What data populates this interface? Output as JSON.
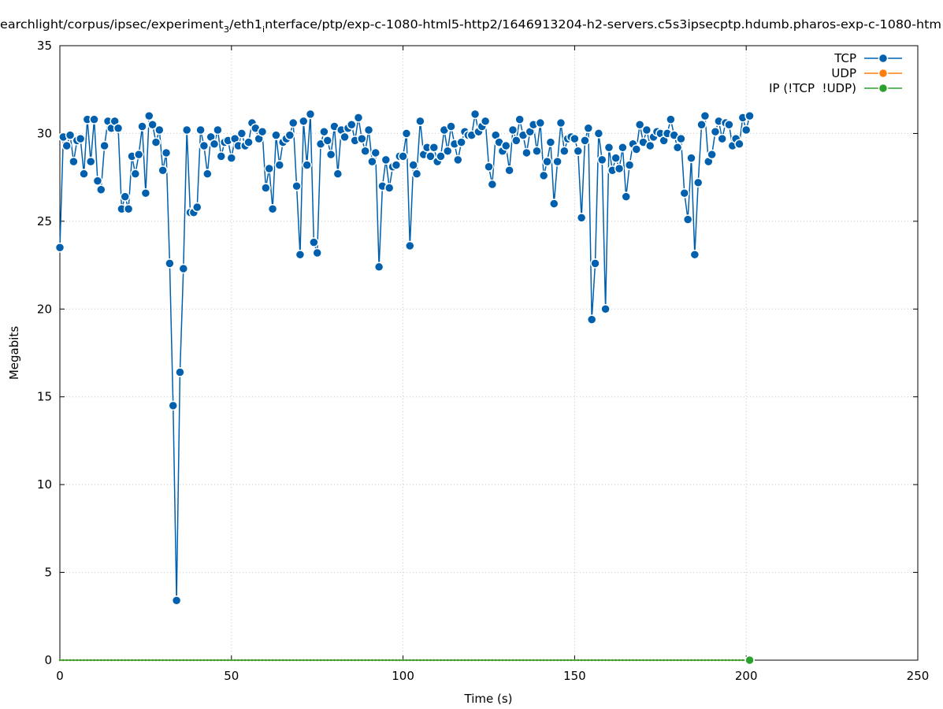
{
  "chart_data": {
    "type": "line",
    "title": [
      "earchlight/corpus/ipsec/experiment",
      "3",
      "/eth1",
      "i",
      "nterface/ptp/exp-c-1080-html5-http2/1646913204-h2-servers.c5s3ipsecptp.hdumb.pharos-exp-c-1080-htm"
    ],
    "x_label": "Time (s)",
    "y_label": "Megabits",
    "xlim": [
      0,
      250
    ],
    "xticks": [
      0,
      50,
      100,
      150,
      200,
      250
    ],
    "ylim": [
      0,
      35
    ],
    "yticks": [
      0,
      5,
      10,
      15,
      20,
      25,
      30,
      35
    ],
    "grid": true,
    "legend": "top-right",
    "x": [
      0,
      1,
      2,
      3,
      4,
      5,
      6,
      7,
      8,
      9,
      10,
      11,
      12,
      13,
      14,
      15,
      16,
      17,
      18,
      19,
      20,
      21,
      22,
      23,
      24,
      25,
      26,
      27,
      28,
      29,
      30,
      31,
      32,
      33,
      34,
      35,
      36,
      37,
      38,
      39,
      40,
      41,
      42,
      43,
      44,
      45,
      46,
      47,
      48,
      49,
      50,
      51,
      52,
      53,
      54,
      55,
      56,
      57,
      58,
      59,
      60,
      61,
      62,
      63,
      64,
      65,
      66,
      67,
      68,
      69,
      70,
      71,
      72,
      73,
      74,
      75,
      76,
      77,
      78,
      79,
      80,
      81,
      82,
      83,
      84,
      85,
      86,
      87,
      88,
      89,
      90,
      91,
      92,
      93,
      94,
      95,
      96,
      97,
      98,
      99,
      100,
      101,
      102,
      103,
      104,
      105,
      106,
      107,
      108,
      109,
      110,
      111,
      112,
      113,
      114,
      115,
      116,
      117,
      118,
      119,
      120,
      121,
      122,
      123,
      124,
      125,
      126,
      127,
      128,
      129,
      130,
      131,
      132,
      133,
      134,
      135,
      136,
      137,
      138,
      139,
      140,
      141,
      142,
      143,
      144,
      145,
      146,
      147,
      148,
      149,
      150,
      151,
      152,
      153,
      154,
      155,
      156,
      157,
      158,
      159,
      160,
      161,
      162,
      163,
      164,
      165,
      166,
      167,
      168,
      169,
      170,
      171,
      172,
      173,
      174,
      175,
      176,
      177,
      178,
      179,
      180,
      181,
      182,
      183,
      184,
      185,
      186,
      187,
      188,
      189,
      190,
      191,
      192,
      193,
      194,
      195,
      196,
      197,
      198,
      199,
      200,
      201
    ],
    "series": [
      {
        "name": "TCP",
        "color": "#0060ad",
        "values": [
          23.5,
          29.8,
          29.3,
          29.9,
          28.4,
          29.6,
          29.7,
          27.7,
          30.8,
          28.4,
          30.8,
          27.3,
          26.8,
          29.3,
          30.7,
          30.3,
          30.7,
          30.3,
          25.7,
          26.4,
          25.7,
          28.7,
          27.7,
          28.8,
          30.4,
          26.6,
          31.0,
          30.5,
          29.5,
          30.2,
          27.9,
          28.9,
          22.6,
          14.5,
          3.4,
          16.4,
          22.3,
          30.2,
          25.5,
          25.5,
          25.8,
          30.2,
          29.3,
          27.7,
          29.8,
          29.4,
          30.2,
          28.7,
          29.5,
          29.6,
          28.6,
          29.7,
          29.3,
          30.0,
          29.3,
          29.5,
          30.6,
          30.3,
          29.7,
          30.1,
          26.9,
          28.0,
          25.7,
          29.9,
          28.2,
          29.5,
          29.7,
          29.9,
          30.6,
          27.0,
          23.1,
          30.7,
          28.2,
          31.1,
          23.8,
          23.2,
          29.4,
          30.1,
          29.6,
          28.8,
          30.4,
          27.7,
          30.2,
          29.8,
          30.3,
          30.5,
          29.6,
          30.9,
          29.7,
          29.0,
          30.2,
          28.4,
          28.9,
          22.4,
          27.0,
          28.5,
          26.9,
          28.1,
          28.2,
          28.7,
          28.7,
          30.0,
          23.6,
          28.2,
          27.7,
          30.7,
          28.8,
          29.2,
          28.7,
          29.2,
          28.4,
          28.7,
          30.2,
          29.0,
          30.4,
          29.4,
          28.5,
          29.5,
          30.1,
          29.9,
          29.9,
          31.1,
          30.1,
          30.4,
          30.7,
          28.1,
          27.1,
          29.9,
          29.5,
          29.0,
          29.3,
          27.9,
          30.2,
          29.6,
          30.8,
          29.9,
          28.9,
          30.1,
          30.5,
          29.0,
          30.6,
          27.6,
          28.4,
          29.5,
          26.0,
          28.4,
          30.6,
          29.0,
          29.7,
          29.8,
          29.7,
          29.0,
          25.2,
          29.6,
          30.3,
          19.4,
          22.6,
          30.0,
          28.5,
          20.0,
          29.2,
          27.9,
          28.6,
          28.0,
          29.2,
          26.4,
          28.2,
          29.4,
          29.1,
          30.5,
          29.5,
          30.2,
          29.3,
          29.8,
          30.1,
          30.0,
          29.6,
          30.0,
          30.8,
          29.9,
          29.2,
          29.7,
          26.6,
          25.1,
          28.6,
          23.1,
          27.2,
          30.5,
          31.0,
          28.4,
          28.8,
          30.1,
          30.7,
          29.7,
          30.6,
          30.5,
          29.3,
          29.7,
          29.4,
          30.9,
          30.2,
          31.0
        ]
      },
      {
        "name": "UDP",
        "color": "#ff7f0e",
        "values": [
          0,
          0,
          0,
          0,
          0,
          0,
          0,
          0,
          0,
          0,
          0,
          0,
          0,
          0,
          0,
          0,
          0,
          0,
          0,
          0,
          0,
          0,
          0,
          0,
          0,
          0,
          0,
          0,
          0,
          0,
          0,
          0,
          0,
          0,
          0,
          0,
          0,
          0,
          0,
          0,
          0,
          0,
          0,
          0,
          0,
          0,
          0,
          0,
          0,
          0,
          0,
          0,
          0,
          0,
          0,
          0,
          0,
          0,
          0,
          0,
          0,
          0,
          0,
          0,
          0,
          0,
          0,
          0,
          0,
          0,
          0,
          0,
          0,
          0,
          0,
          0,
          0,
          0,
          0,
          0,
          0,
          0,
          0,
          0,
          0,
          0,
          0,
          0,
          0,
          0,
          0,
          0,
          0,
          0,
          0,
          0,
          0,
          0,
          0,
          0,
          0,
          0,
          0,
          0,
          0,
          0,
          0,
          0,
          0,
          0,
          0,
          0,
          0,
          0,
          0,
          0,
          0,
          0,
          0,
          0,
          0,
          0,
          0,
          0,
          0,
          0,
          0,
          0,
          0,
          0,
          0,
          0,
          0,
          0,
          0,
          0,
          0,
          0,
          0,
          0,
          0,
          0,
          0,
          0,
          0,
          0,
          0,
          0,
          0,
          0,
          0,
          0,
          0,
          0,
          0,
          0,
          0,
          0,
          0,
          0,
          0,
          0,
          0,
          0,
          0,
          0,
          0,
          0,
          0,
          0,
          0,
          0,
          0,
          0,
          0,
          0,
          0,
          0,
          0,
          0,
          0,
          0,
          0,
          0,
          0,
          0,
          0,
          0,
          0,
          0,
          0,
          0,
          0,
          0,
          0,
          0,
          0,
          0,
          0,
          0,
          0,
          0
        ]
      },
      {
        "name": "IP (!TCP  !UDP)",
        "color": "#2ca02c",
        "values": [
          0,
          0,
          0,
          0,
          0,
          0,
          0,
          0,
          0,
          0,
          0,
          0,
          0,
          0,
          0,
          0,
          0,
          0,
          0,
          0,
          0,
          0,
          0,
          0,
          0,
          0,
          0,
          0,
          0,
          0,
          0,
          0,
          0,
          0,
          0,
          0,
          0,
          0,
          0,
          0,
          0,
          0,
          0,
          0,
          0,
          0,
          0,
          0,
          0,
          0,
          0,
          0,
          0,
          0,
          0,
          0,
          0,
          0,
          0,
          0,
          0,
          0,
          0,
          0,
          0,
          0,
          0,
          0,
          0,
          0,
          0,
          0,
          0,
          0,
          0,
          0,
          0,
          0,
          0,
          0,
          0,
          0,
          0,
          0,
          0,
          0,
          0,
          0,
          0,
          0,
          0,
          0,
          0,
          0,
          0,
          0,
          0,
          0,
          0,
          0,
          0,
          0,
          0,
          0,
          0,
          0,
          0,
          0,
          0,
          0,
          0,
          0,
          0,
          0,
          0,
          0,
          0,
          0,
          0,
          0,
          0,
          0,
          0,
          0,
          0,
          0,
          0,
          0,
          0,
          0,
          0,
          0,
          0,
          0,
          0,
          0,
          0,
          0,
          0,
          0,
          0,
          0,
          0,
          0,
          0,
          0,
          0,
          0,
          0,
          0,
          0,
          0,
          0,
          0,
          0,
          0,
          0,
          0,
          0,
          0,
          0,
          0,
          0,
          0,
          0,
          0,
          0,
          0,
          0,
          0,
          0,
          0,
          0,
          0,
          0,
          0,
          0,
          0,
          0,
          0,
          0,
          0,
          0,
          0,
          0,
          0,
          0,
          0,
          0,
          0,
          0,
          0,
          0,
          0,
          0,
          0,
          0,
          0,
          0,
          0,
          0,
          0
        ]
      }
    ]
  }
}
